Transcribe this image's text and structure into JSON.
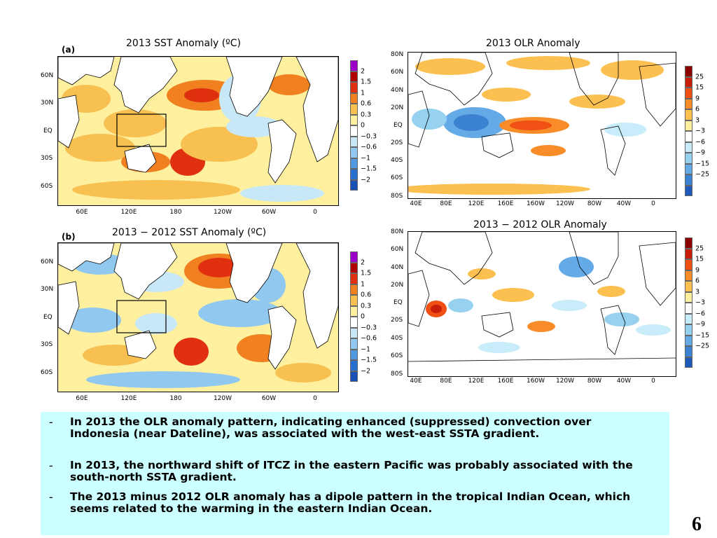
{
  "panels": {
    "sst2013": {
      "tag": "(a)",
      "title": "2013 SST Anomaly (ºC)",
      "ylabels": [
        "60N",
        "30N",
        "EQ",
        "30S",
        "60S"
      ],
      "xlabels": [
        "60E",
        "120E",
        "180",
        "120W",
        "60W",
        "0"
      ],
      "legend": [
        "2",
        "1.5",
        "1",
        "0.6",
        "0.3",
        "0",
        "−0.3",
        "−0.6",
        "−1",
        "−1.5",
        "−2"
      ]
    },
    "olr2013": {
      "title": "2013 OLR Anomaly",
      "ylabels": [
        "80N",
        "60N",
        "40N",
        "20N",
        "EQ",
        "20S",
        "40S",
        "60S",
        "80S"
      ],
      "xlabels": [
        "40E",
        "80E",
        "120E",
        "160E",
        "160W",
        "120W",
        "80W",
        "40W",
        "0"
      ],
      "legend": [
        "25",
        "15",
        "9",
        "6",
        "3",
        "−3",
        "−6",
        "−9",
        "−15",
        "−25"
      ]
    },
    "sstdiff": {
      "tag": "(b)",
      "title": "2013 − 2012 SST Anomaly (ºC)",
      "ylabels": [
        "60N",
        "30N",
        "EQ",
        "30S",
        "60S"
      ],
      "xlabels": [
        "60E",
        "120E",
        "180",
        "120W",
        "60W",
        "0"
      ],
      "legend": [
        "2",
        "1.5",
        "1",
        "0.6",
        "0.3",
        "0",
        "−0.3",
        "−0.6",
        "−1",
        "−1.5",
        "−2"
      ]
    },
    "olrdiff": {
      "title": "2013 − 2012 OLR Anomaly",
      "ylabels": [
        "80N",
        "60N",
        "40N",
        "20N",
        "EQ",
        "20S",
        "40S",
        "60S",
        "80S"
      ],
      "xlabels": [
        "40E",
        "80E",
        "120E",
        "160E",
        "160W",
        "120W",
        "80W",
        "40W",
        "0"
      ],
      "legend": [
        "25",
        "15",
        "9",
        "6",
        "3",
        "−3",
        "−6",
        "−9",
        "−15",
        "−25"
      ]
    }
  },
  "colors": {
    "sst_scale": [
      "#9d00c8",
      "#b00000",
      "#e03010",
      "#f08020",
      "#f8c050",
      "#fff0a0",
      "#ffffff",
      "#c8e8f8",
      "#90c8f0",
      "#5098e0",
      "#2870d0",
      "#1850b8"
    ],
    "olr_scale": [
      "#8c0000",
      "#c81e0a",
      "#f05014",
      "#f88c28",
      "#fcc050",
      "#fff0a0",
      "#ffffff",
      "#c8ecfa",
      "#96d2f0",
      "#64aae6",
      "#3c82d2",
      "#1e5ab9"
    ],
    "land": "#ffffff",
    "textbox_bg": "#ccffff"
  },
  "bullets": [
    {
      "marker": "-",
      "text": "In 2013 the OLR anomaly pattern, indicating enhanced (suppressed) convection over Indonesia (near Dateline), was associated with the west-east SSTA gradient."
    },
    {
      "marker": "-",
      "text": "In 2013, the northward shift of ITCZ in the eastern Pacific was probably associated with the south-north SSTA gradient."
    },
    {
      "marker": "-",
      "text": "The 2013 minus 2012 OLR anomaly has a dipole pattern in the tropical Indian Ocean, which seems related to the warming in the eastern Indian Ocean."
    }
  ],
  "page_number": "6"
}
